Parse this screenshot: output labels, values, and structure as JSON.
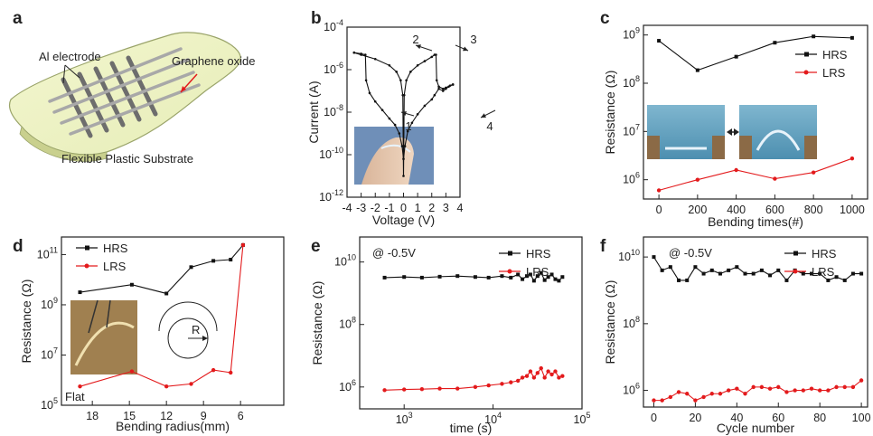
{
  "colors": {
    "hrs": "#111111",
    "lrs": "#e31a1c",
    "at_label": "#1f3fa8",
    "graphene_oxide": "#e31a1c"
  },
  "panel_a": {
    "letter": "a",
    "electrode_label": "Al electrode",
    "oxide_label": "Graphene oxide",
    "substrate_label": "Flexible Plastic Substrate"
  },
  "chart_data": [
    {
      "id": "b",
      "letter": "b",
      "type": "line",
      "xlabel": "Voltage (V)",
      "ylabel": "Current (A)",
      "xlim": [
        -4,
        4
      ],
      "ylim": [
        -12,
        -4
      ],
      "yscale": "log",
      "xticks": [
        "-4",
        "-3",
        "-2",
        "-1",
        "0",
        "1",
        "2",
        "3",
        "4"
      ],
      "yticks": [
        "10^-12",
        "10^-10",
        "10^-8",
        "10^-6",
        "10^-4"
      ],
      "annotations": [
        "1",
        "2",
        "3",
        "4"
      ],
      "inset": "photo of flexible device bent on a finger",
      "series": [
        {
          "x": [
            -3.5,
            -3.0,
            -2.7,
            -2.65,
            -2.4,
            -2.0,
            -1.5,
            -1.0,
            -0.6,
            -0.3,
            -0.1,
            0.0,
            0.1,
            0.3,
            0.6,
            1.0,
            1.5,
            2.0,
            2.2,
            2.5,
            2.8,
            3.0,
            3.2,
            3.5
          ],
          "y": [
            -5.2,
            -5.25,
            -5.3,
            -6.5,
            -7.1,
            -7.5,
            -7.9,
            -8.3,
            -8.6,
            -9.0,
            -9.6,
            -10.2,
            -9.6,
            -8.9,
            -8.5,
            -8.1,
            -7.7,
            -7.4,
            -7.2,
            -6.9,
            -7.0,
            -6.9,
            -6.8,
            -6.7
          ]
        },
        {
          "x": [
            -3.5,
            -3.0,
            -2.0,
            -1.0,
            -0.5,
            -0.2,
            -0.05,
            0.0,
            0.05,
            0.2,
            0.5,
            1.0,
            1.5,
            2.0,
            2.2,
            2.3,
            2.35,
            2.5,
            2.8,
            3.0,
            3.3,
            3.5
          ],
          "y": [
            -5.2,
            -5.3,
            -5.5,
            -5.8,
            -6.1,
            -6.5,
            -7.2,
            -11.0,
            -7.2,
            -6.5,
            -6.1,
            -5.8,
            -5.6,
            -5.4,
            -5.3,
            -5.3,
            -6.5,
            -6.8,
            -6.9,
            -6.85,
            -6.75,
            -6.7
          ]
        }
      ]
    },
    {
      "id": "c",
      "letter": "c",
      "type": "line",
      "xlabel": "Bending times(#)",
      "ylabel": "Resistance (Ω)",
      "xlim": [
        -80,
        1080
      ],
      "ylim": [
        5.6,
        9.2
      ],
      "yscale": "log",
      "xticks": [
        "0",
        "200",
        "400",
        "600",
        "800",
        "1000"
      ],
      "yticks": [
        "10^6",
        "10^7",
        "10^8",
        "10^9"
      ],
      "series": [
        {
          "name": "HRS",
          "x": [
            0,
            200,
            400,
            600,
            800,
            1000
          ],
          "y": [
            8.88,
            8.27,
            8.55,
            8.84,
            8.97,
            8.94
          ]
        },
        {
          "name": "LRS",
          "x": [
            0,
            200,
            400,
            600,
            800,
            1000
          ],
          "y": [
            5.78,
            6.0,
            6.2,
            6.02,
            6.15,
            6.44
          ]
        }
      ]
    },
    {
      "id": "d",
      "letter": "d",
      "type": "line",
      "xlabel": "Bending radius(mm)",
      "ylabel": "Resistance (Ω)",
      "xlim": [
        20.5,
        2.5
      ],
      "ylim": [
        5,
        11.7
      ],
      "yscale": "log",
      "xticks": [
        "18",
        "15",
        "12",
        "9",
        "6"
      ],
      "yticks": [
        "10^5",
        "10^7",
        "10^9",
        "10^11"
      ],
      "flat_label": "Flat",
      "radius_label": "R",
      "series": [
        {
          "name": "HRS",
          "x": [
            19,
            14.8,
            12,
            10,
            8.2,
            6.8,
            5.8
          ],
          "y": [
            9.5,
            9.8,
            9.45,
            10.5,
            10.75,
            10.8,
            11.38
          ]
        },
        {
          "name": "LRS",
          "x": [
            19,
            14.8,
            12,
            10,
            8.2,
            6.8,
            5.8
          ],
          "y": [
            5.75,
            6.35,
            5.75,
            5.85,
            6.4,
            6.3,
            11.38
          ]
        }
      ]
    },
    {
      "id": "e",
      "letter": "e",
      "type": "scatter",
      "xlabel": "time (s)",
      "ylabel": "Resistance (Ω)",
      "xlim": [
        2.5,
        5
      ],
      "ylim": [
        5.3,
        10.8
      ],
      "xscale": "log",
      "yscale": "log",
      "xticks": [
        "10^3",
        "10^4",
        "10^5"
      ],
      "yticks": [
        "10^6",
        "10^8",
        "10^10"
      ],
      "condition": "@ -0.5V",
      "series": [
        {
          "name": "HRS",
          "x": [
            2.78,
            3.0,
            3.2,
            3.4,
            3.6,
            3.8,
            3.95,
            4.1,
            4.2,
            4.28,
            4.33,
            4.38,
            4.42,
            4.46,
            4.5,
            4.54,
            4.58,
            4.62,
            4.66,
            4.7,
            4.74,
            4.78
          ],
          "y": [
            9.5,
            9.52,
            9.5,
            9.53,
            9.55,
            9.52,
            9.5,
            9.55,
            9.5,
            9.6,
            9.45,
            9.55,
            9.6,
            9.4,
            9.55,
            9.65,
            9.42,
            9.52,
            9.6,
            9.45,
            9.4,
            9.52
          ]
        },
        {
          "name": "LRS",
          "x": [
            2.78,
            3.0,
            3.2,
            3.4,
            3.6,
            3.8,
            3.95,
            4.1,
            4.2,
            4.28,
            4.33,
            4.38,
            4.42,
            4.46,
            4.5,
            4.54,
            4.58,
            4.62,
            4.66,
            4.7,
            4.74,
            4.78
          ],
          "y": [
            5.9,
            5.92,
            5.93,
            5.95,
            5.95,
            6.0,
            6.05,
            6.1,
            6.15,
            6.2,
            6.3,
            6.35,
            6.5,
            6.3,
            6.45,
            6.6,
            6.3,
            6.5,
            6.4,
            6.5,
            6.3,
            6.35
          ]
        }
      ]
    },
    {
      "id": "f",
      "letter": "f",
      "type": "line",
      "xlabel": "Cycle number",
      "ylabel": "Resistance (Ω)",
      "xlim": [
        -5,
        103
      ],
      "ylim": [
        5.5,
        10.6
      ],
      "yscale": "log",
      "xticks": [
        "0",
        "20",
        "40",
        "60",
        "80",
        "100"
      ],
      "yticks": [
        "10^6",
        "10^8",
        "10^10"
      ],
      "condition": "@ -0.5V",
      "series": [
        {
          "name": "HRS",
          "x": [
            0,
            4,
            8,
            12,
            16,
            20,
            24,
            28,
            32,
            36,
            40,
            44,
            48,
            52,
            56,
            60,
            64,
            68,
            72,
            76,
            80,
            84,
            88,
            92,
            96,
            100
          ],
          "y": [
            10.0,
            9.6,
            9.7,
            9.3,
            9.3,
            9.7,
            9.5,
            9.6,
            9.5,
            9.6,
            9.7,
            9.5,
            9.5,
            9.6,
            9.45,
            9.6,
            9.3,
            9.6,
            9.5,
            9.5,
            9.5,
            9.3,
            9.4,
            9.3,
            9.5,
            9.5
          ]
        },
        {
          "name": "LRS",
          "x": [
            0,
            4,
            8,
            12,
            16,
            20,
            24,
            28,
            32,
            36,
            40,
            44,
            48,
            52,
            56,
            60,
            64,
            68,
            72,
            76,
            80,
            84,
            88,
            92,
            96,
            100
          ],
          "y": [
            5.7,
            5.7,
            5.8,
            5.95,
            5.9,
            5.7,
            5.8,
            5.9,
            5.9,
            6.0,
            6.05,
            5.9,
            6.1,
            6.1,
            6.05,
            6.1,
            5.95,
            6.0,
            6.0,
            6.05,
            6.0,
            6.0,
            6.1,
            6.1,
            6.1,
            6.3
          ]
        }
      ]
    }
  ]
}
